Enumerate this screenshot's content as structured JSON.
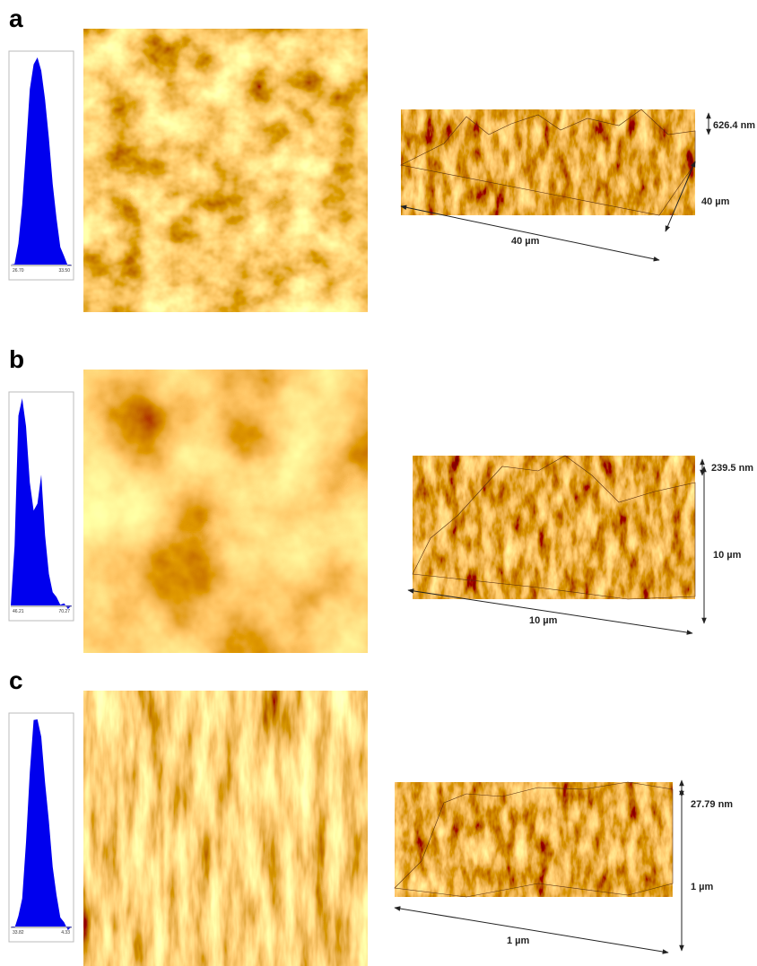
{
  "panels": [
    {
      "label": "a",
      "hist_min": "26.70",
      "hist_max": "33.50",
      "height": "626.4 nm",
      "x_size": "40 µm",
      "y_size": "40 µm"
    },
    {
      "label": "b",
      "hist_min": "46.21",
      "hist_max": "70.27",
      "height": "239.5 nm",
      "x_size": "10 µm",
      "y_size": "10 µm"
    },
    {
      "label": "c",
      "hist_min": "33.82",
      "hist_max": "4.33",
      "height": "27.79 nm",
      "x_size": "1 µm",
      "y_size": "1 µm"
    }
  ]
}
